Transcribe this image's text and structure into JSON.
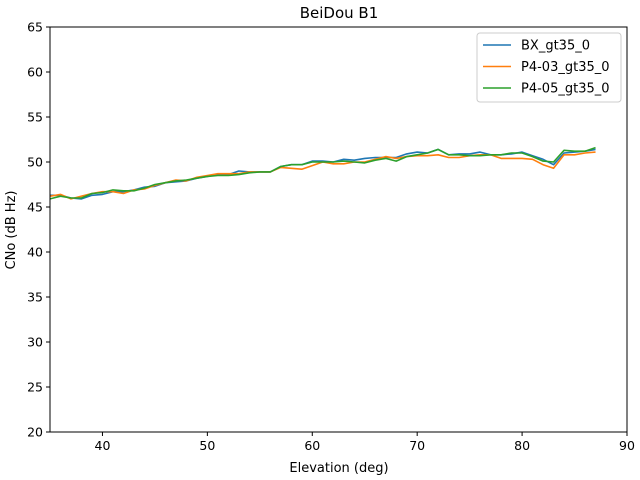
{
  "chart_data": {
    "type": "line",
    "title": "BeiDou B1",
    "xlabel": "Elevation (deg)",
    "ylabel": "CNo (dB Hz)",
    "xlim": [
      35,
      90
    ],
    "ylim": [
      20,
      65
    ],
    "xticks": [
      40,
      50,
      60,
      70,
      80,
      90
    ],
    "yticks": [
      20,
      25,
      30,
      35,
      40,
      45,
      50,
      55,
      60,
      65
    ],
    "legend_position": "top-right",
    "x": [
      35,
      36,
      37,
      38,
      39,
      40,
      41,
      42,
      43,
      44,
      45,
      46,
      47,
      48,
      49,
      50,
      51,
      52,
      53,
      54,
      55,
      56,
      57,
      58,
      59,
      60,
      61,
      62,
      63,
      64,
      65,
      66,
      67,
      68,
      69,
      70,
      71,
      72,
      73,
      74,
      75,
      76,
      77,
      78,
      79,
      80,
      81,
      82,
      83,
      84,
      85,
      86,
      87
    ],
    "series": [
      {
        "name": "BX_gt35_0",
        "color": "#1f77b4",
        "values": [
          46.3,
          46.3,
          46.0,
          45.9,
          46.3,
          46.4,
          46.7,
          46.7,
          46.9,
          47.2,
          47.3,
          47.7,
          47.8,
          47.9,
          48.2,
          48.4,
          48.6,
          48.6,
          49.0,
          48.9,
          48.9,
          48.9,
          49.5,
          49.7,
          49.7,
          50.1,
          50.1,
          50.0,
          50.3,
          50.2,
          50.4,
          50.5,
          50.5,
          50.5,
          50.9,
          51.1,
          51.0,
          51.4,
          50.8,
          50.9,
          50.9,
          51.1,
          50.8,
          50.8,
          50.9,
          51.1,
          50.7,
          50.3,
          49.7,
          51.0,
          51.1,
          51.2,
          51.4
        ]
      },
      {
        "name": "P4-03_gt35_0",
        "color": "#ff7f0e",
        "values": [
          46.2,
          46.4,
          45.9,
          46.2,
          46.5,
          46.7,
          46.7,
          46.5,
          46.9,
          47.0,
          47.4,
          47.7,
          48.0,
          47.9,
          48.3,
          48.5,
          48.7,
          48.7,
          48.7,
          48.9,
          48.9,
          48.9,
          49.4,
          49.3,
          49.2,
          49.6,
          50.0,
          49.8,
          49.8,
          50.0,
          50.0,
          50.3,
          50.6,
          50.4,
          50.6,
          50.7,
          50.7,
          50.8,
          50.5,
          50.5,
          50.7,
          50.8,
          50.8,
          50.4,
          50.4,
          50.4,
          50.3,
          49.7,
          49.3,
          50.8,
          50.8,
          51.0,
          51.1
        ]
      },
      {
        "name": "P4-05_gt35_0",
        "color": "#2ca02c",
        "values": [
          45.9,
          46.2,
          46.0,
          46.0,
          46.5,
          46.6,
          46.9,
          46.8,
          46.8,
          47.1,
          47.5,
          47.7,
          47.9,
          48.0,
          48.2,
          48.4,
          48.5,
          48.5,
          48.6,
          48.8,
          48.9,
          48.9,
          49.5,
          49.7,
          49.7,
          50.0,
          50.0,
          50.0,
          50.1,
          50.0,
          49.9,
          50.2,
          50.4,
          50.1,
          50.6,
          50.8,
          51.0,
          51.4,
          50.8,
          50.8,
          50.7,
          50.7,
          50.8,
          50.8,
          51.0,
          51.0,
          50.6,
          50.1,
          50.0,
          51.3,
          51.2,
          51.2,
          51.6
        ]
      }
    ]
  }
}
